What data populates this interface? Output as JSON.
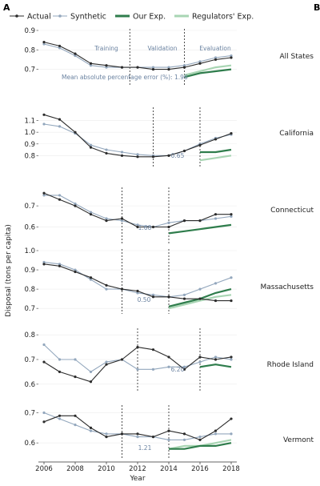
{
  "figure": {
    "panel_left": "A",
    "panel_right": "B",
    "legend": [
      {
        "key": "actual",
        "label": "Actual"
      },
      {
        "key": "synthetic",
        "label": "Synthetic"
      },
      {
        "key": "ours",
        "label": "Our Exp."
      },
      {
        "key": "regulators",
        "label": "Regulators' Exp."
      }
    ],
    "ylabel": "Disposal (tons per capita)",
    "xlabel": "Year",
    "x_ticks": [
      2006,
      2008,
      2010,
      2012,
      2014,
      2016,
      2018
    ],
    "phase_labels": [
      "Training",
      "Validation",
      "Evaluation"
    ],
    "colors": {
      "actual": "#2b2b2b",
      "synthetic": "#93a7bd",
      "ours": "#2f7d4c",
      "regulators": "#a8d5b3"
    }
  },
  "chart_data": [
    {
      "type": "line",
      "state": "All States",
      "ylim": [
        0.62,
        0.9
      ],
      "yticks": [
        0.7,
        0.8,
        0.9
      ],
      "vlines": [
        2011.5,
        2015
      ],
      "mape_text": "Mean absolute percentage error (%): 1.96",
      "x": [
        2006,
        2007,
        2008,
        2009,
        2010,
        2011,
        2012,
        2013,
        2014,
        2015,
        2016,
        2017,
        2018
      ],
      "series": [
        {
          "name": "Actual",
          "key": "actual",
          "x": [
            2006,
            2007,
            2008,
            2009,
            2010,
            2011,
            2012,
            2013,
            2014,
            2015,
            2016,
            2017,
            2018
          ],
          "values": [
            0.84,
            0.82,
            0.78,
            0.73,
            0.72,
            0.71,
            0.71,
            0.7,
            0.7,
            0.71,
            0.73,
            0.75,
            0.76
          ]
        },
        {
          "name": "Synthetic",
          "key": "synthetic",
          "x": [
            2006,
            2007,
            2008,
            2009,
            2010,
            2011,
            2012,
            2013,
            2014,
            2015,
            2016,
            2017,
            2018
          ],
          "values": [
            0.83,
            0.81,
            0.77,
            0.72,
            0.71,
            0.71,
            0.71,
            0.71,
            0.71,
            0.72,
            0.74,
            0.76,
            0.77
          ]
        },
        {
          "name": "Our Exp.",
          "key": "ours",
          "x": [
            2015,
            2016,
            2017,
            2018
          ],
          "values": [
            0.66,
            0.68,
            0.69,
            0.7
          ]
        },
        {
          "name": "Regulators' Exp.",
          "key": "regulators",
          "x": [
            2015,
            2016,
            2017,
            2018
          ],
          "values": [
            0.67,
            0.69,
            0.71,
            0.72
          ]
        }
      ]
    },
    {
      "type": "line",
      "state": "California",
      "ylim": [
        0.72,
        1.2
      ],
      "yticks": [
        0.8,
        0.9,
        1.0,
        1.1
      ],
      "vlines": [
        2013,
        2016
      ],
      "mape_text": "0.65",
      "x": [
        2006,
        2007,
        2008,
        2009,
        2010,
        2011,
        2012,
        2013,
        2014,
        2015,
        2016,
        2017,
        2018
      ],
      "series": [
        {
          "name": "Actual",
          "key": "actual",
          "x": [
            2006,
            2007,
            2008,
            2009,
            2010,
            2011,
            2012,
            2013,
            2014,
            2015,
            2016,
            2017,
            2018
          ],
          "values": [
            1.15,
            1.11,
            1.0,
            0.87,
            0.82,
            0.8,
            0.79,
            0.79,
            0.8,
            0.84,
            0.89,
            0.94,
            0.99
          ]
        },
        {
          "name": "Synthetic",
          "key": "synthetic",
          "x": [
            2006,
            2007,
            2008,
            2009,
            2010,
            2011,
            2012,
            2013,
            2014,
            2015,
            2016,
            2017,
            2018
          ],
          "values": [
            1.07,
            1.05,
            0.99,
            0.89,
            0.85,
            0.83,
            0.81,
            0.8,
            0.8,
            0.84,
            0.9,
            0.95,
            0.98
          ]
        },
        {
          "name": "Our Exp.",
          "key": "ours",
          "x": [
            2016,
            2017,
            2018
          ],
          "values": [
            0.83,
            0.83,
            0.85
          ]
        },
        {
          "name": "Regulators' Exp.",
          "key": "regulators",
          "x": [
            2016,
            2017,
            2018
          ],
          "values": [
            0.76,
            0.78,
            0.8
          ]
        }
      ]
    },
    {
      "type": "line",
      "state": "Connecticut",
      "ylim": [
        0.53,
        0.78
      ],
      "yticks": [
        0.6,
        0.7
      ],
      "vlines": [
        2011,
        2014
      ],
      "mape_text": "1.68",
      "x": [
        2006,
        2007,
        2008,
        2009,
        2010,
        2011,
        2012,
        2013,
        2014,
        2015,
        2016,
        2017,
        2018
      ],
      "series": [
        {
          "name": "Actual",
          "key": "actual",
          "x": [
            2006,
            2007,
            2008,
            2009,
            2010,
            2011,
            2012,
            2013,
            2014,
            2015,
            2016,
            2017,
            2018
          ],
          "values": [
            0.76,
            0.73,
            0.7,
            0.66,
            0.63,
            0.64,
            0.6,
            0.6,
            0.6,
            0.63,
            0.63,
            0.66,
            0.66
          ]
        },
        {
          "name": "Synthetic",
          "key": "synthetic",
          "x": [
            2006,
            2007,
            2008,
            2009,
            2010,
            2011,
            2012,
            2013,
            2014,
            2015,
            2016,
            2017,
            2018
          ],
          "values": [
            0.75,
            0.75,
            0.71,
            0.67,
            0.64,
            0.63,
            0.61,
            0.6,
            0.62,
            0.63,
            0.63,
            0.64,
            0.65
          ]
        },
        {
          "name": "Our Exp.",
          "key": "ours",
          "x": [
            2014,
            2015,
            2016,
            2017,
            2018
          ],
          "values": [
            0.57,
            0.58,
            0.59,
            0.6,
            0.61
          ]
        }
      ]
    },
    {
      "type": "line",
      "state": "Massachusetts",
      "ylim": [
        0.68,
        1.0
      ],
      "yticks": [
        0.7,
        0.8,
        0.9,
        1.0
      ],
      "vlines": [
        2011,
        2014
      ],
      "mape_text": "0.50",
      "x": [
        2006,
        2007,
        2008,
        2009,
        2010,
        2011,
        2012,
        2013,
        2014,
        2015,
        2016,
        2017,
        2018
      ],
      "series": [
        {
          "name": "Actual",
          "key": "actual",
          "x": [
            2006,
            2007,
            2008,
            2009,
            2010,
            2011,
            2012,
            2013,
            2014,
            2015,
            2016,
            2017,
            2018
          ],
          "values": [
            0.93,
            0.92,
            0.89,
            0.86,
            0.82,
            0.8,
            0.79,
            0.76,
            0.76,
            0.75,
            0.75,
            0.74,
            0.74
          ]
        },
        {
          "name": "Synthetic",
          "key": "synthetic",
          "x": [
            2006,
            2007,
            2008,
            2009,
            2010,
            2011,
            2012,
            2013,
            2014,
            2015,
            2016,
            2017,
            2018
          ],
          "values": [
            0.94,
            0.93,
            0.9,
            0.85,
            0.8,
            0.8,
            0.78,
            0.77,
            0.76,
            0.77,
            0.8,
            0.83,
            0.86
          ]
        },
        {
          "name": "Our Exp.",
          "key": "ours",
          "x": [
            2014,
            2015,
            2016,
            2017,
            2018
          ],
          "values": [
            0.71,
            0.73,
            0.75,
            0.78,
            0.8
          ]
        },
        {
          "name": "Regulators' Exp.",
          "key": "regulators",
          "x": [
            2014,
            2015,
            2016,
            2017,
            2018
          ],
          "values": [
            0.7,
            0.72,
            0.74,
            0.76,
            0.77
          ]
        }
      ]
    },
    {
      "type": "line",
      "state": "Rhode Island",
      "ylim": [
        0.58,
        0.82
      ],
      "yticks": [
        0.6,
        0.7,
        0.8
      ],
      "vlines": [
        2012,
        2016
      ],
      "mape_text": "6.20",
      "x": [
        2006,
        2007,
        2008,
        2009,
        2010,
        2011,
        2012,
        2013,
        2014,
        2015,
        2016,
        2017,
        2018
      ],
      "series": [
        {
          "name": "Actual",
          "key": "actual",
          "x": [
            2006,
            2007,
            2008,
            2009,
            2010,
            2011,
            2012,
            2013,
            2014,
            2015,
            2016,
            2017,
            2018
          ],
          "values": [
            0.69,
            0.65,
            0.63,
            0.61,
            0.68,
            0.7,
            0.75,
            0.74,
            0.71,
            0.66,
            0.71,
            0.7,
            0.71
          ]
        },
        {
          "name": "Synthetic",
          "key": "synthetic",
          "x": [
            2006,
            2007,
            2008,
            2009,
            2010,
            2011,
            2012,
            2013,
            2014,
            2015,
            2016,
            2017,
            2018
          ],
          "values": [
            0.76,
            0.7,
            0.7,
            0.65,
            0.69,
            0.7,
            0.66,
            0.66,
            0.67,
            0.67,
            0.69,
            0.71,
            0.7
          ]
        },
        {
          "name": "Our Exp.",
          "key": "ours",
          "x": [
            2016,
            2017,
            2018
          ],
          "values": [
            0.67,
            0.68,
            0.67
          ]
        }
      ]
    },
    {
      "type": "line",
      "state": "Vermont",
      "ylim": [
        0.55,
        0.72
      ],
      "yticks": [
        0.6,
        0.7
      ],
      "vlines": [
        2011,
        2014
      ],
      "mape_text": "1.21",
      "x": [
        2006,
        2007,
        2008,
        2009,
        2010,
        2011,
        2012,
        2013,
        2014,
        2015,
        2016,
        2017,
        2018
      ],
      "series": [
        {
          "name": "Actual",
          "key": "actual",
          "x": [
            2006,
            2007,
            2008,
            2009,
            2010,
            2011,
            2012,
            2013,
            2014,
            2015,
            2016,
            2017,
            2018
          ],
          "values": [
            0.67,
            0.69,
            0.69,
            0.65,
            0.62,
            0.63,
            0.63,
            0.62,
            0.64,
            0.63,
            0.61,
            0.64,
            0.68
          ]
        },
        {
          "name": "Synthetic",
          "key": "synthetic",
          "x": [
            2006,
            2007,
            2008,
            2009,
            2010,
            2011,
            2012,
            2013,
            2014,
            2015,
            2016,
            2017,
            2018
          ],
          "values": [
            0.7,
            0.68,
            0.66,
            0.64,
            0.63,
            0.63,
            0.62,
            0.62,
            0.61,
            0.61,
            0.62,
            0.63,
            0.63
          ]
        },
        {
          "name": "Our Exp.",
          "key": "ours",
          "x": [
            2014,
            2015,
            2016,
            2017,
            2018
          ],
          "values": [
            0.58,
            0.58,
            0.59,
            0.59,
            0.6
          ]
        },
        {
          "name": "Regulators' Exp.",
          "key": "regulators",
          "x": [
            2014,
            2015,
            2016,
            2017,
            2018
          ],
          "values": [
            0.58,
            0.59,
            0.59,
            0.6,
            0.61
          ]
        }
      ]
    }
  ]
}
